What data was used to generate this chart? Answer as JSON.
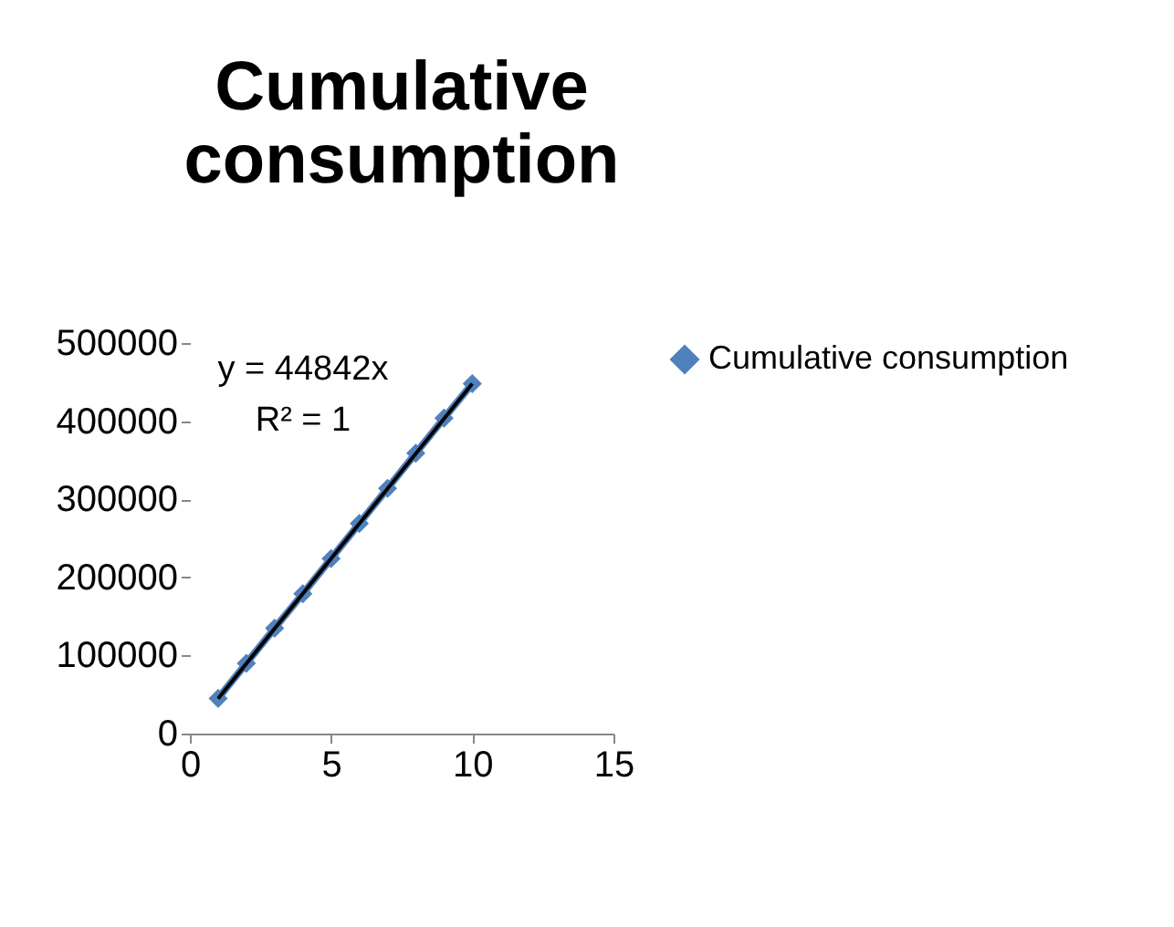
{
  "chart_data": {
    "type": "line",
    "title": "Cumulative consumption",
    "x": [
      1,
      2,
      3,
      4,
      5,
      6,
      7,
      8,
      9,
      10
    ],
    "series": [
      {
        "name": "Cumulative consumption",
        "color": "#4f81bd",
        "marker": "diamond",
        "line_style": "solid",
        "values": [
          45000,
          90000,
          135000,
          179000,
          224000,
          269000,
          314000,
          359000,
          404000,
          448000
        ]
      },
      {
        "type": "line",
        "color": "#000000",
        "marker": "none",
        "line_style": "solid",
        "x": [
          1,
          10
        ],
        "values": [
          44800,
          448000
        ]
      }
    ],
    "annotations": [
      "y = 44842x",
      "R² = 1"
    ],
    "xlim": [
      0,
      15
    ],
    "xticks": [
      0,
      5,
      10,
      15
    ],
    "ylim": [
      0,
      500000
    ],
    "yticks": [
      0,
      100000,
      200000,
      300000,
      400000,
      500000
    ],
    "grid": false,
    "legend": "right"
  }
}
